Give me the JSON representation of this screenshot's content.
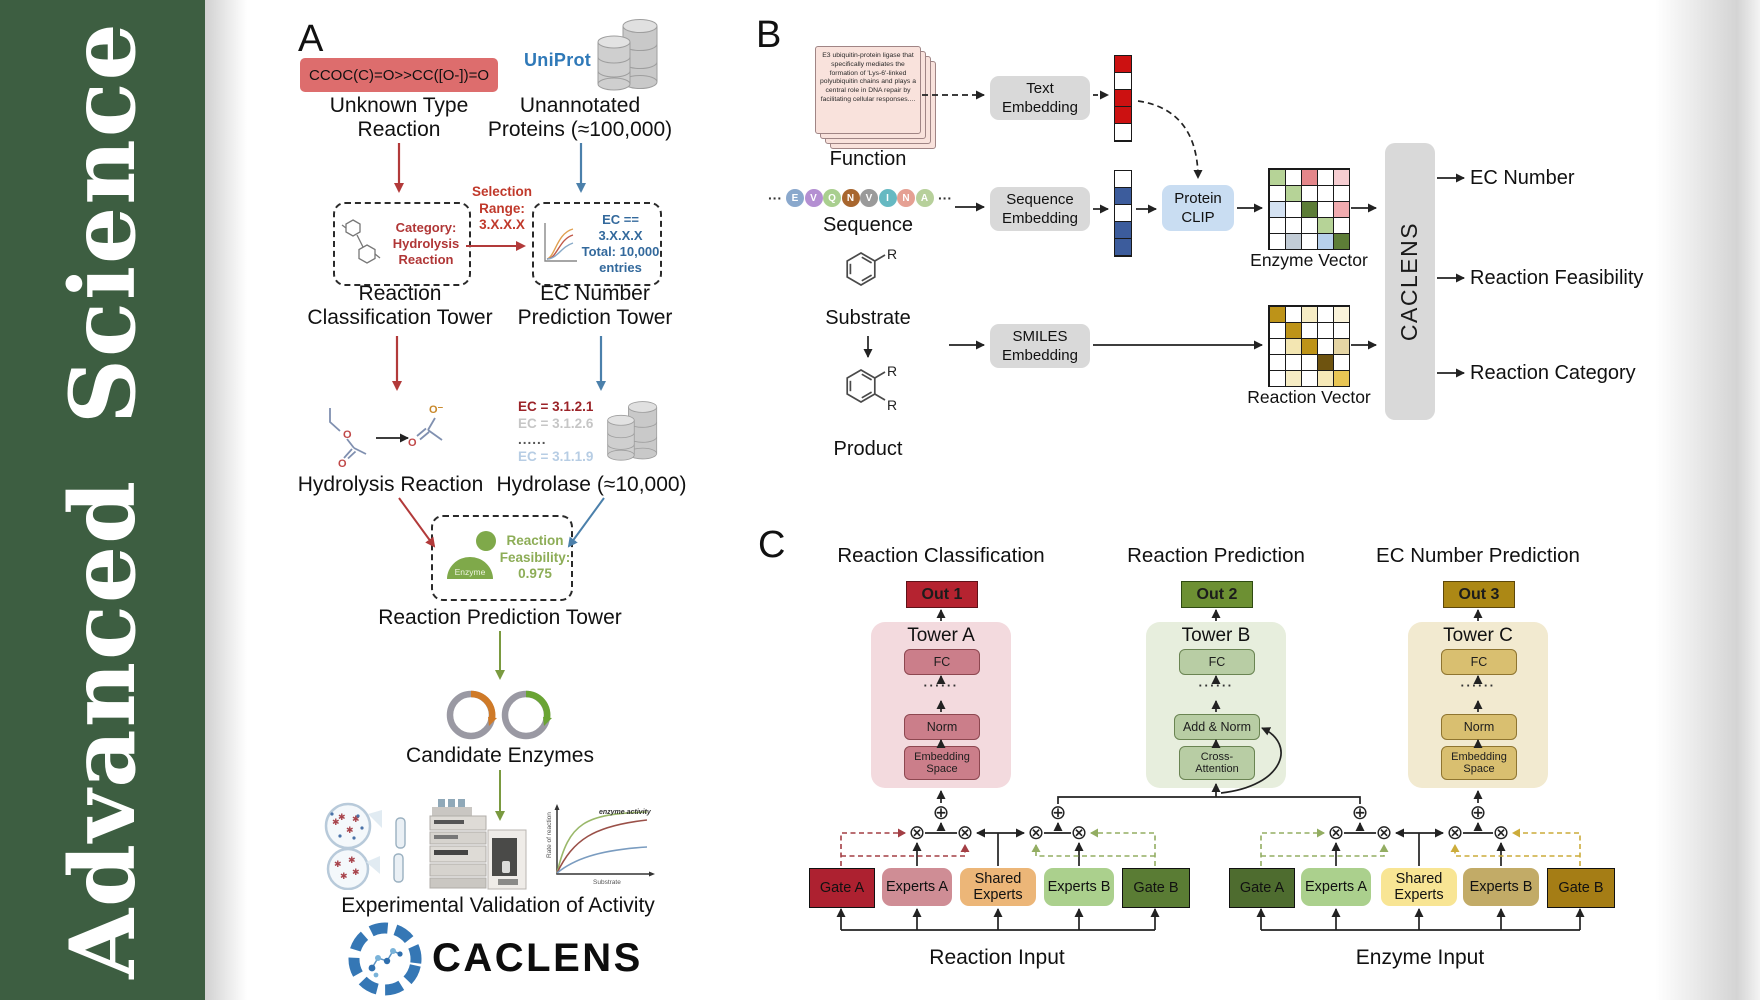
{
  "sidebar": {
    "word1": "Advanced",
    "word2": "Science",
    "bg_color": "#3d5e41"
  },
  "panelA": {
    "label": "A",
    "smiles": "CCOC(C)=O>>CC([O-])=O",
    "unknown_type": "Unknown Type\nReaction",
    "uniprot": "UniProt",
    "unannotated": "Unannotated\nProteins (≈100,000)",
    "selection_range": "Selection\nRange:\n3.X.X.X",
    "category": "Category:\nHydrolysis\nReaction",
    "ec_filter": "EC == 3.X.X.X\nTotal: 10,000\nentries",
    "classification_tower": "Reaction\nClassification Tower",
    "ec_tower": "EC Number\nPrediction Tower",
    "ec_list": [
      "EC = 3.1.2.1",
      "EC = 3.1.2.6",
      "......",
      "EC = 3.1.1.9"
    ],
    "hydrolysis_reaction": "Hydrolysis Reaction",
    "hydrolase": "Hydrolase (≈10,000)",
    "enzyme": "Enzyme",
    "feasibility": "Reaction\nFeasibility:\n0.975",
    "prediction_tower": "Reaction Prediction Tower",
    "candidate_enzymes": "Candidate Enzymes",
    "validation": "Experimental Validation of Activity",
    "brand": "CACLENS",
    "activity_plot": {
      "curve_label": "enzyme activity",
      "ylabel": "Rate of reaction",
      "xlabel": "Substrate"
    }
  },
  "panelB": {
    "label": "B",
    "function_card": "E3 ubiquitin-protein ligase that specifically mediates the formation of 'Lys-6'-linked polyubiquitin chains and plays a central role in DNA repair by facilitating cellular responses....",
    "function_label": "Function",
    "ellipsis": "···",
    "residues": [
      {
        "letter": "E",
        "color": "#8aa8cc"
      },
      {
        "letter": "V",
        "color": "#b48fd2"
      },
      {
        "letter": "Q",
        "color": "#a9cf8f"
      },
      {
        "letter": "N",
        "color": "#a8662e"
      },
      {
        "letter": "V",
        "color": "#9a9a9a"
      },
      {
        "letter": "I",
        "color": "#66b9c2"
      },
      {
        "letter": "N",
        "color": "#e5a093"
      },
      {
        "letter": "A",
        "color": "#b7d09b"
      }
    ],
    "sequence_label": "Sequence",
    "substrate_label": "Substrate",
    "product_label": "Product",
    "r_group": "R",
    "text_embedding": "Text\nEmbedding",
    "sequence_embedding": "Sequence\nEmbedding",
    "smiles_embedding": "SMILES\nEmbedding",
    "protein_clip": "Protein\nCLIP",
    "text_vector": [
      "#cc1111",
      "#ffffff",
      "#cc1111",
      "#cc1111",
      "#ffffff"
    ],
    "sequence_vector": [
      "#ffffff",
      "#3c5c9c",
      "#ffffff",
      "#3c5c9c",
      "#3c5c9c"
    ],
    "enzyme_vector_label": "Enzyme Vector",
    "reaction_vector_label": "Reaction Vector",
    "enzyme_grid": [
      "#b6d397",
      "#ffffff",
      "#e4868a",
      "#ffffff",
      "#f6cdd1",
      "#ffffff",
      "#b6d397",
      "#ffffff",
      "#ffffff",
      "#ffffff",
      "#d4e2f2",
      "#ffffff",
      "#5d7d37",
      "#ffffff",
      "#f0abaf",
      "#ffffff",
      "#ffffff",
      "#ffffff",
      "#b6d397",
      "#ffffff",
      "#ffffff",
      "#c2ccd6",
      "#ffffff",
      "#b7d0eb",
      "#5d7d37"
    ],
    "reaction_grid": [
      "#bd9318",
      "#ffffff",
      "#f6ecc4",
      "#ffffff",
      "#faf3da",
      "#ffffff",
      "#bd9318",
      "#ffffff",
      "#ffffff",
      "#ffffff",
      "#ffffff",
      "#f3e6b2",
      "#bd9318",
      "#ffffff",
      "#e5d5a4",
      "#ffffff",
      "#ffffff",
      "#ffffff",
      "#6e530f",
      "#ffffff",
      "#ffffff",
      "#f6ecc4",
      "#ffffff",
      "#f6e9b8",
      "#e9c654"
    ],
    "caclens": "CACLENS",
    "outputs": [
      "EC Number",
      "Reaction Feasibility",
      "Reaction Category"
    ]
  },
  "panelC": {
    "label": "C",
    "headings": [
      "Reaction Classification",
      "Reaction Prediction",
      "EC Number Prediction"
    ],
    "towers": [
      {
        "out": "Out 1",
        "name": "Tower A",
        "fc": "FC",
        "dots": "······",
        "mid": "Norm",
        "bottom": "Embedding\nSpace"
      },
      {
        "out": "Out 2",
        "name": "Tower B",
        "fc": "FC",
        "dots": "······",
        "mid": "Add & Norm",
        "bottom": "Cross-\nAttention"
      },
      {
        "out": "Out 3",
        "name": "Tower C",
        "fc": "FC",
        "dots": "······",
        "mid": "Norm",
        "bottom": "Embedding\nSpace"
      }
    ],
    "moe": [
      {
        "gate_a": "Gate A",
        "experts_a": "Experts A",
        "shared": "Shared\nExperts",
        "experts_b": "Experts B",
        "gate_b": "Gate B",
        "input": "Reaction Input"
      },
      {
        "gate_a": "Gate A",
        "experts_a": "Experts A",
        "shared": "Shared\nExperts",
        "experts_b": "Experts B",
        "gate_b": "Gate B",
        "input": "Enzyme Input"
      }
    ],
    "nodes": {
      "multiply": "⊗",
      "add": "⊕"
    }
  },
  "colors": {
    "sidebar_green": "#3d5e41",
    "arrow_red": "#b23a3a",
    "arrow_blue": "#4b80ab",
    "arrow_olive": "#7a9a40",
    "gate_a_reaction": "#ad2130",
    "gate_b_reaction": "#5a7c34",
    "gate_a_enzyme": "#4e6c2f",
    "gate_b_enzyme": "#a57d15",
    "smiles_box": "#dd6d6d",
    "embedding_box": "#d9d9d9",
    "protein_clip_box": "#c9ddf2"
  }
}
